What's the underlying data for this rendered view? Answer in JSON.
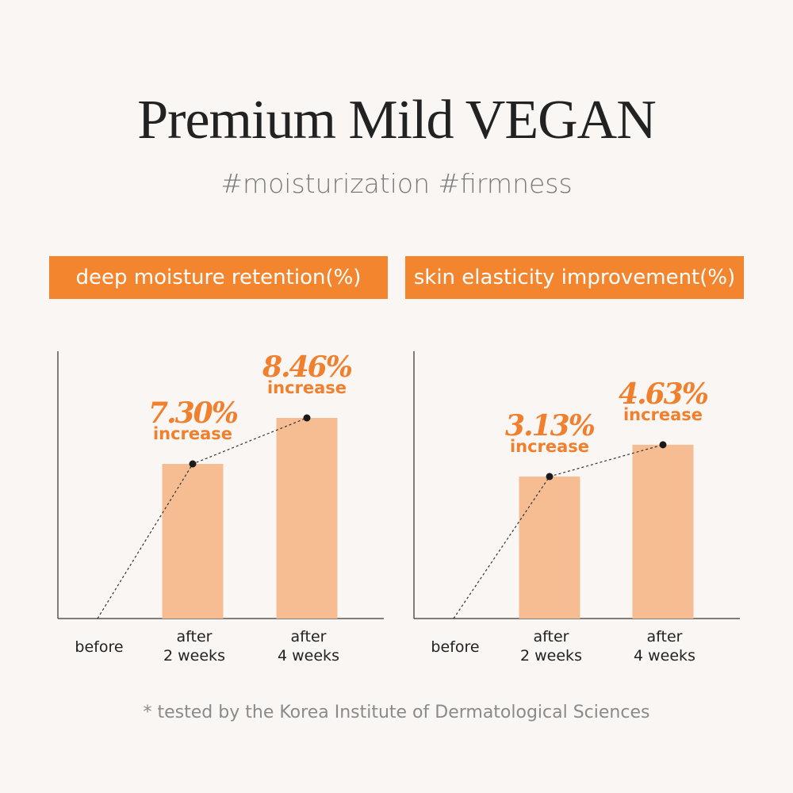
{
  "title": "Premium Mild VEGAN",
  "subtitle": "#moisturization #firmness",
  "footnote": "* tested by the Korea Institute of Dermatological Sciences",
  "colors": {
    "accent": "#f4852f",
    "bar": "#f6bd93",
    "background": "#faf6f3",
    "text": "#222222"
  },
  "chart_data": [
    {
      "type": "bar",
      "title": "deep moisture retention(%)",
      "categories": [
        [
          "before"
        ],
        [
          "after",
          "2 weeks"
        ],
        [
          "after",
          "4 weeks"
        ]
      ],
      "values": [
        0,
        7.3,
        8.46
      ],
      "data_labels": [
        null,
        {
          "value": "7.30%",
          "text": "increase"
        },
        {
          "value": "8.46%",
          "text": "increase"
        }
      ],
      "trend_line": "dashed",
      "grid": false
    },
    {
      "type": "bar",
      "title": "skin elasticity improvement(%)",
      "categories": [
        [
          "before"
        ],
        [
          "after",
          "2 weeks"
        ],
        [
          "after",
          "4 weeks"
        ]
      ],
      "values": [
        0,
        3.13,
        4.63
      ],
      "data_labels": [
        null,
        {
          "value": "3.13%",
          "text": "increase"
        },
        {
          "value": "4.63%",
          "text": "increase"
        }
      ],
      "trend_line": "dashed",
      "grid": false
    }
  ]
}
